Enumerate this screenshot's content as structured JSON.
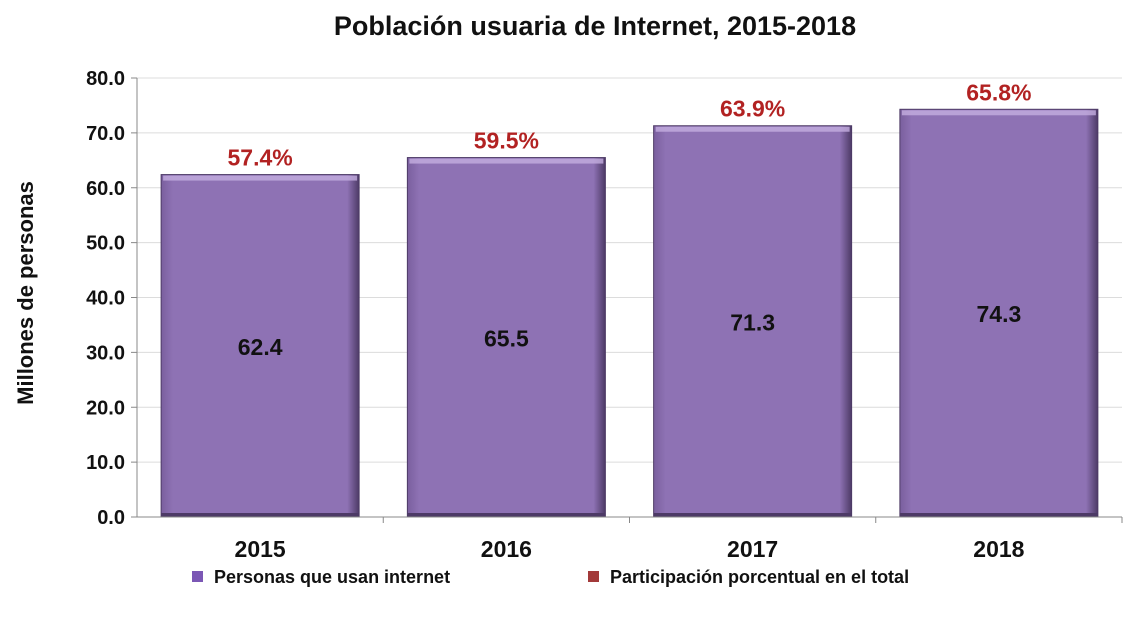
{
  "chart_data": {
    "type": "bar",
    "title": "Población usuaria de Internet, 2015-2018",
    "xlabel": "",
    "ylabel": "Millones de personas",
    "categories": [
      "2015",
      "2016",
      "2017",
      "2018"
    ],
    "series": [
      {
        "name": "Personas que usan internet",
        "values": [
          62.4,
          65.5,
          71.3,
          74.3
        ],
        "color": "#8e72b4"
      },
      {
        "name": "Participación porcentual en el total",
        "values": [
          "57.4%",
          "59.5%",
          "63.9%",
          "65.8%"
        ],
        "color": "#b22222"
      }
    ],
    "ylim": [
      0,
      80
    ],
    "yticks": [
      "0.0",
      "10.0",
      "20.0",
      "30.0",
      "40.0",
      "50.0",
      "60.0",
      "70.0",
      "80.0"
    ],
    "grid": true,
    "legend_position": "bottom"
  }
}
